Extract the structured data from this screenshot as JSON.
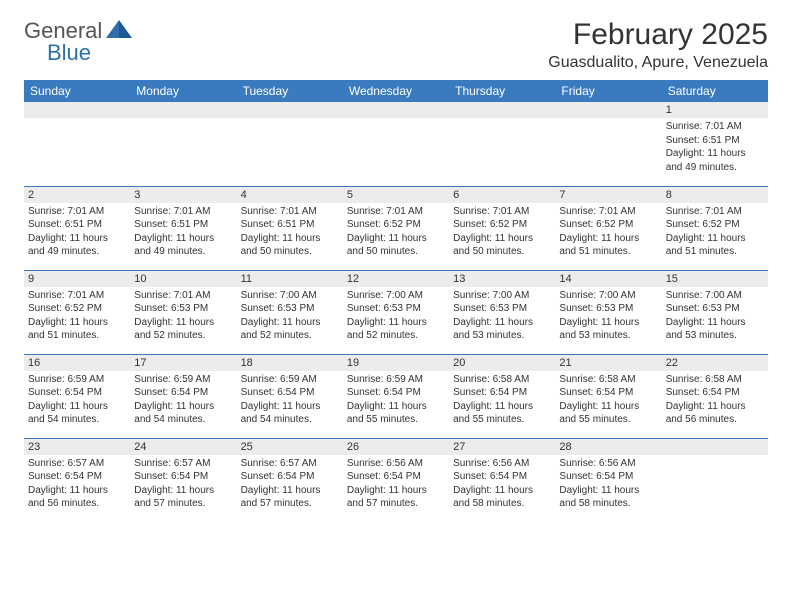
{
  "logo": {
    "text1": "General",
    "text2": "Blue"
  },
  "title": "February 2025",
  "location": "Guasdualito, Apure, Venezuela",
  "colors": {
    "header_bg": "#3a7bbf",
    "header_text": "#ffffff",
    "daynum_bg": "#ececec",
    "border": "#3a7bbf",
    "logo_blue": "#2f6fae",
    "logo_gray": "#555555",
    "text": "#333333",
    "background": "#ffffff"
  },
  "day_headers": [
    "Sunday",
    "Monday",
    "Tuesday",
    "Wednesday",
    "Thursday",
    "Friday",
    "Saturday"
  ],
  "weeks": [
    [
      null,
      null,
      null,
      null,
      null,
      null,
      {
        "n": "1",
        "sunrise": "7:01 AM",
        "sunset": "6:51 PM",
        "daylight": "11 hours and 49 minutes."
      }
    ],
    [
      {
        "n": "2",
        "sunrise": "7:01 AM",
        "sunset": "6:51 PM",
        "daylight": "11 hours and 49 minutes."
      },
      {
        "n": "3",
        "sunrise": "7:01 AM",
        "sunset": "6:51 PM",
        "daylight": "11 hours and 49 minutes."
      },
      {
        "n": "4",
        "sunrise": "7:01 AM",
        "sunset": "6:51 PM",
        "daylight": "11 hours and 50 minutes."
      },
      {
        "n": "5",
        "sunrise": "7:01 AM",
        "sunset": "6:52 PM",
        "daylight": "11 hours and 50 minutes."
      },
      {
        "n": "6",
        "sunrise": "7:01 AM",
        "sunset": "6:52 PM",
        "daylight": "11 hours and 50 minutes."
      },
      {
        "n": "7",
        "sunrise": "7:01 AM",
        "sunset": "6:52 PM",
        "daylight": "11 hours and 51 minutes."
      },
      {
        "n": "8",
        "sunrise": "7:01 AM",
        "sunset": "6:52 PM",
        "daylight": "11 hours and 51 minutes."
      }
    ],
    [
      {
        "n": "9",
        "sunrise": "7:01 AM",
        "sunset": "6:52 PM",
        "daylight": "11 hours and 51 minutes."
      },
      {
        "n": "10",
        "sunrise": "7:01 AM",
        "sunset": "6:53 PM",
        "daylight": "11 hours and 52 minutes."
      },
      {
        "n": "11",
        "sunrise": "7:00 AM",
        "sunset": "6:53 PM",
        "daylight": "11 hours and 52 minutes."
      },
      {
        "n": "12",
        "sunrise": "7:00 AM",
        "sunset": "6:53 PM",
        "daylight": "11 hours and 52 minutes."
      },
      {
        "n": "13",
        "sunrise": "7:00 AM",
        "sunset": "6:53 PM",
        "daylight": "11 hours and 53 minutes."
      },
      {
        "n": "14",
        "sunrise": "7:00 AM",
        "sunset": "6:53 PM",
        "daylight": "11 hours and 53 minutes."
      },
      {
        "n": "15",
        "sunrise": "7:00 AM",
        "sunset": "6:53 PM",
        "daylight": "11 hours and 53 minutes."
      }
    ],
    [
      {
        "n": "16",
        "sunrise": "6:59 AM",
        "sunset": "6:54 PM",
        "daylight": "11 hours and 54 minutes."
      },
      {
        "n": "17",
        "sunrise": "6:59 AM",
        "sunset": "6:54 PM",
        "daylight": "11 hours and 54 minutes."
      },
      {
        "n": "18",
        "sunrise": "6:59 AM",
        "sunset": "6:54 PM",
        "daylight": "11 hours and 54 minutes."
      },
      {
        "n": "19",
        "sunrise": "6:59 AM",
        "sunset": "6:54 PM",
        "daylight": "11 hours and 55 minutes."
      },
      {
        "n": "20",
        "sunrise": "6:58 AM",
        "sunset": "6:54 PM",
        "daylight": "11 hours and 55 minutes."
      },
      {
        "n": "21",
        "sunrise": "6:58 AM",
        "sunset": "6:54 PM",
        "daylight": "11 hours and 55 minutes."
      },
      {
        "n": "22",
        "sunrise": "6:58 AM",
        "sunset": "6:54 PM",
        "daylight": "11 hours and 56 minutes."
      }
    ],
    [
      {
        "n": "23",
        "sunrise": "6:57 AM",
        "sunset": "6:54 PM",
        "daylight": "11 hours and 56 minutes."
      },
      {
        "n": "24",
        "sunrise": "6:57 AM",
        "sunset": "6:54 PM",
        "daylight": "11 hours and 57 minutes."
      },
      {
        "n": "25",
        "sunrise": "6:57 AM",
        "sunset": "6:54 PM",
        "daylight": "11 hours and 57 minutes."
      },
      {
        "n": "26",
        "sunrise": "6:56 AM",
        "sunset": "6:54 PM",
        "daylight": "11 hours and 57 minutes."
      },
      {
        "n": "27",
        "sunrise": "6:56 AM",
        "sunset": "6:54 PM",
        "daylight": "11 hours and 58 minutes."
      },
      {
        "n": "28",
        "sunrise": "6:56 AM",
        "sunset": "6:54 PM",
        "daylight": "11 hours and 58 minutes."
      },
      null
    ]
  ],
  "labels": {
    "sunrise": "Sunrise:",
    "sunset": "Sunset:",
    "daylight": "Daylight:"
  }
}
